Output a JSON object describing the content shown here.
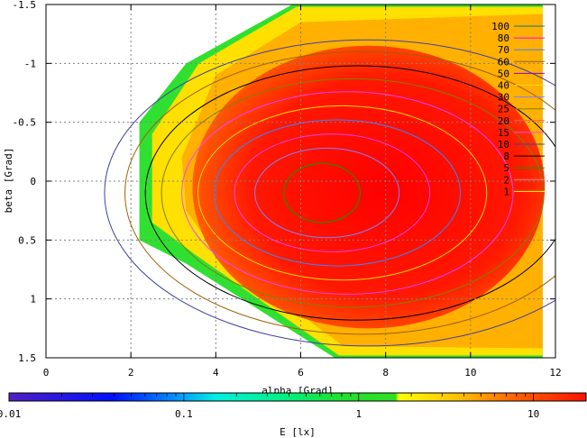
{
  "chart_data": {
    "type": "heatmap",
    "xlabel": "alpha [Grad]",
    "ylabel": "beta [Grad]",
    "x_ticks": [
      "0",
      "2",
      "4",
      "6",
      "8",
      "10",
      "12"
    ],
    "x_tick_values": [
      0,
      2,
      4,
      6,
      8,
      10,
      12
    ],
    "y_ticks": [
      "-1.5",
      "-1",
      "-0.5",
      "0",
      "0.5",
      "1",
      "1.5"
    ],
    "y_tick_values": [
      -1.5,
      -1,
      -0.5,
      0,
      0.5,
      1,
      1.5
    ],
    "xlim": [
      0,
      12
    ],
    "ylim": [
      -1.5,
      1.5
    ],
    "y_inverted": true,
    "grid": true,
    "legend_position": "top-right",
    "contour_levels": [
      "100",
      "80",
      "70",
      "60",
      "50",
      "40",
      "30",
      "25",
      "20",
      "15",
      "10",
      "8",
      "5",
      "2",
      "1"
    ],
    "contour_colors": [
      "#008080",
      "#ff00ff",
      "#4080ff",
      "#a06000",
      "#9400d3",
      "#ffd700",
      "#8080ff",
      "#808000",
      "#ff6040",
      "#ff40ff",
      "#4040a0",
      "#000000",
      "#00a000",
      "#ff8080",
      "#ffff00"
    ],
    "peak": {
      "alpha": 6.5,
      "beta": 0.1,
      "value": 100
    },
    "region_outline": [
      [
        2.2,
        -0.5
      ],
      [
        3.3,
        -1.0
      ],
      [
        5.8,
        -1.5
      ],
      [
        11.7,
        -1.5
      ],
      [
        11.7,
        1.5
      ],
      [
        6.8,
        1.5
      ],
      [
        3.3,
        0.7
      ],
      [
        2.2,
        0.5
      ]
    ],
    "colorbar": {
      "label": "E [lx]",
      "scale": "log",
      "range": [
        0.01,
        20
      ],
      "ticks": [
        "0.01",
        "0.1",
        "1",
        "10"
      ],
      "tick_values": [
        0.01,
        0.1,
        1,
        10
      ]
    }
  }
}
